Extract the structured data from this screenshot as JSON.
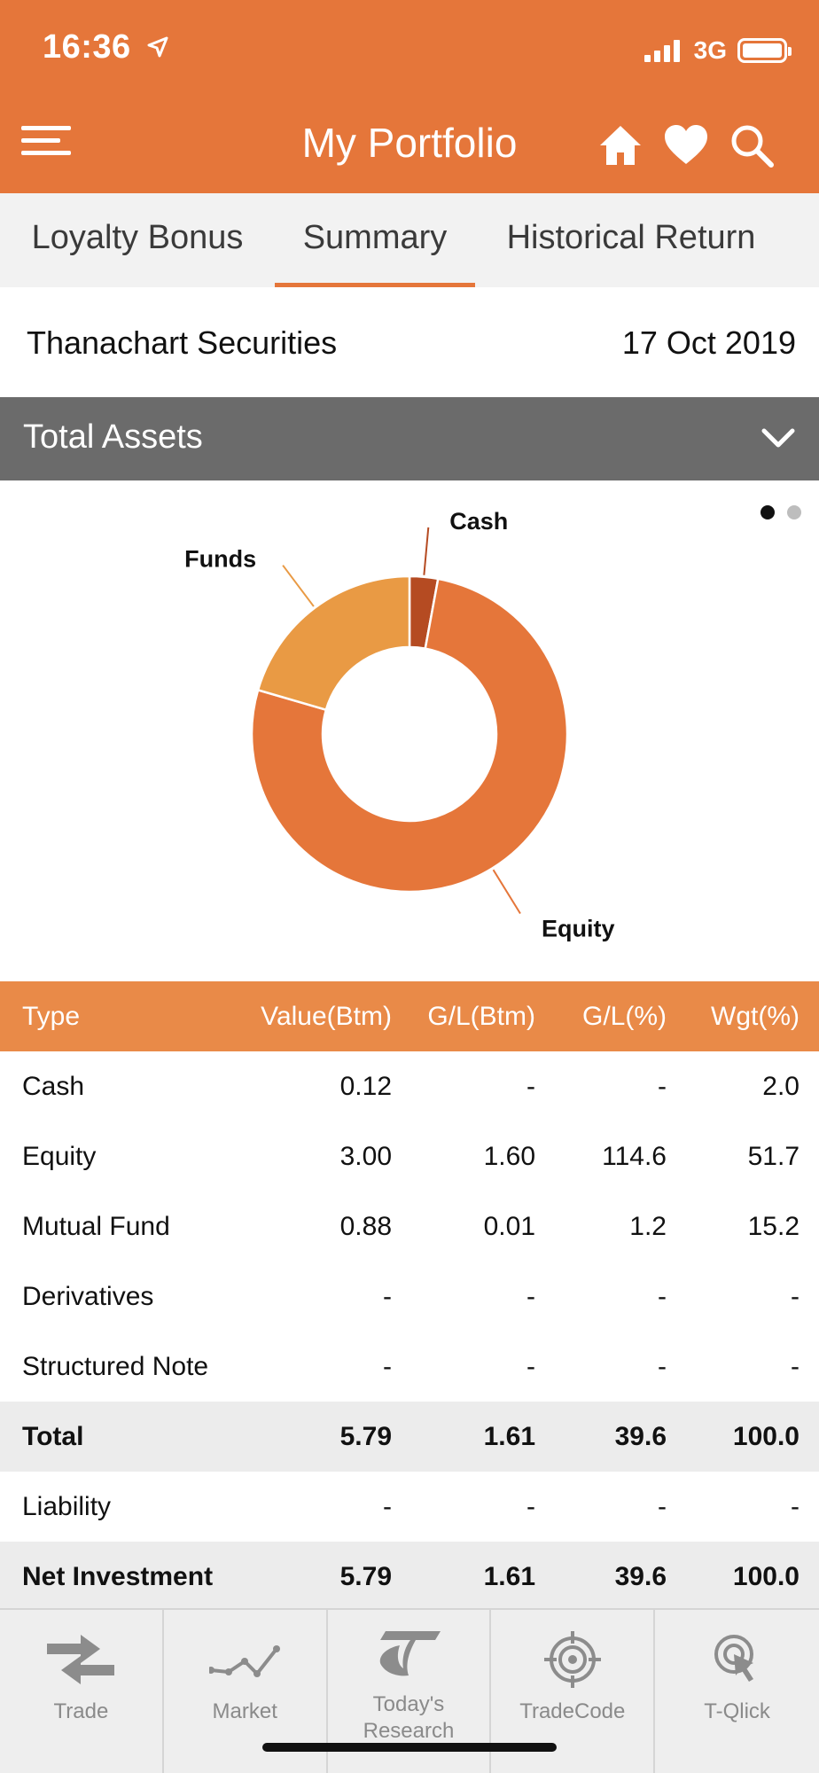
{
  "status_bar": {
    "time": "16:36",
    "network": "3G"
  },
  "header": {
    "title": "My Portfolio",
    "icons": [
      "menu-icon",
      "home-icon",
      "heart-icon",
      "search-icon"
    ]
  },
  "tabs": [
    {
      "label": "Loyalty Bonus",
      "active": false
    },
    {
      "label": "Summary",
      "active": true
    },
    {
      "label": "Historical Return",
      "active": false
    }
  ],
  "broker": {
    "name": "Thanachart Securities",
    "date": "17 Oct 2019"
  },
  "section": {
    "title": "Total Assets"
  },
  "colors": {
    "brand_orange": "#e5763a",
    "header_row": "#e98a48",
    "cash": "#b54b22",
    "equity": "#e5763a",
    "funds": "#e99a44",
    "section_bar": "#6b6b6b"
  },
  "chart_data": {
    "type": "pie",
    "categories": [
      "Cash",
      "Equity",
      "Funds"
    ],
    "values": [
      2.9,
      76.6,
      20.5
    ],
    "labels": [
      "Cash",
      "Equity",
      "Funds"
    ]
  },
  "table": {
    "headers": [
      "Type",
      "Value(Btm)",
      "G/L(Btm)",
      "G/L(%)",
      "Wgt(%)"
    ],
    "rows": [
      [
        "Cash",
        "0.12",
        "-",
        "-",
        "2.0"
      ],
      [
        "Equity",
        "3.00",
        "1.60",
        "114.6",
        "51.7"
      ],
      [
        "Mutual Fund",
        "0.88",
        "0.01",
        "1.2",
        "15.2"
      ],
      [
        "Derivatives",
        "-",
        "-",
        "-",
        "-"
      ],
      [
        "Structured Note",
        "-",
        "-",
        "-",
        "-"
      ],
      [
        "Total",
        "5.79",
        "1.61",
        "39.6",
        "100.0"
      ],
      [
        "Liability",
        "-",
        "-",
        "-",
        "-"
      ],
      [
        "Net Investment",
        "5.79",
        "1.61",
        "39.6",
        "100.0"
      ]
    ]
  },
  "bottom_nav": [
    {
      "label": "Trade",
      "icon": "trade-icon"
    },
    {
      "label": "Market",
      "icon": "market-icon"
    },
    {
      "label": "Today's Research",
      "icon": "research-icon"
    },
    {
      "label": "TradeCode",
      "icon": "target-icon"
    },
    {
      "label": "T-Qlick",
      "icon": "click-icon"
    }
  ]
}
